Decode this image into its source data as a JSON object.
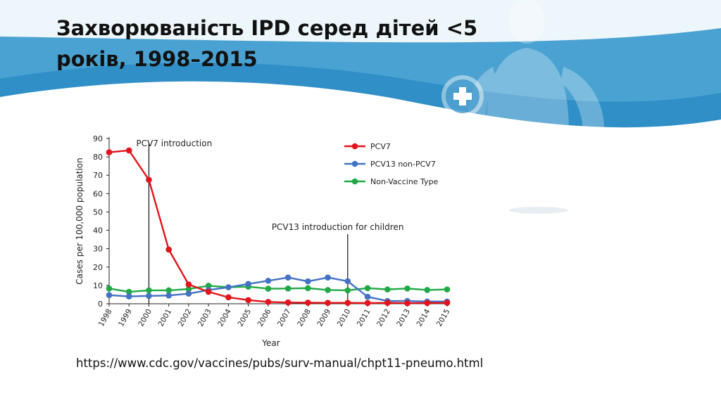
{
  "slide": {
    "title_line1": "Захворюваність IPD серед дітей  <5",
    "title_line2": "років, 1998–2015",
    "source_url": "https://www.cdc.gov/vaccines/pubs/surv-manual/chpt11-pneumo.html"
  },
  "colors": {
    "banner_dark": "#2f8fc6",
    "banner_light": "#5fb3dd",
    "pcv7": "#e3141b",
    "pcv13": "#4472c4",
    "nvt": "#21a947"
  },
  "chart_data": {
    "type": "line",
    "xlabel": "Year",
    "ylabel": "Cases per 100,000 population",
    "ylim": [
      0,
      90
    ],
    "yticks": [
      0,
      10,
      20,
      30,
      40,
      50,
      60,
      70,
      80,
      90
    ],
    "categories": [
      "1998",
      "1999",
      "2000",
      "2001",
      "2002",
      "2003",
      "2004",
      "2005",
      "2006",
      "2007",
      "2008",
      "2009",
      "2010",
      "2011",
      "2012",
      "2013",
      "2014",
      "2015"
    ],
    "grid": false,
    "legend_position": "top-right",
    "series": [
      {
        "name": "PCV7",
        "color": "#e3141b",
        "values": [
          82.5,
          83.5,
          67.5,
          29.5,
          10.5,
          6.5,
          3.5,
          2.0,
          1.0,
          0.7,
          0.6,
          0.5,
          0.5,
          0.4,
          0.5,
          0.3,
          0.4,
          0.5
        ]
      },
      {
        "name": "PCV13 non-PCV7",
        "color": "#4472c4",
        "values": [
          4.7,
          4.0,
          4.3,
          4.5,
          5.5,
          7.5,
          9.0,
          10.8,
          12.5,
          14.3,
          12.2,
          14.3,
          12.3,
          3.8,
          1.5,
          1.5,
          1.2,
          1.2
        ]
      },
      {
        "name": "Non-Vaccine Type",
        "color": "#21a947",
        "values": [
          8.3,
          6.5,
          7.3,
          7.3,
          8.0,
          9.8,
          9.0,
          9.3,
          8.2,
          8.3,
          8.5,
          7.5,
          7.3,
          8.5,
          7.8,
          8.3,
          7.5,
          7.8
        ]
      }
    ],
    "annotations": [
      {
        "text": "PCV7 introduction",
        "year": "2000"
      },
      {
        "text": "PCV13 introduction for children",
        "year": "2010"
      }
    ]
  }
}
